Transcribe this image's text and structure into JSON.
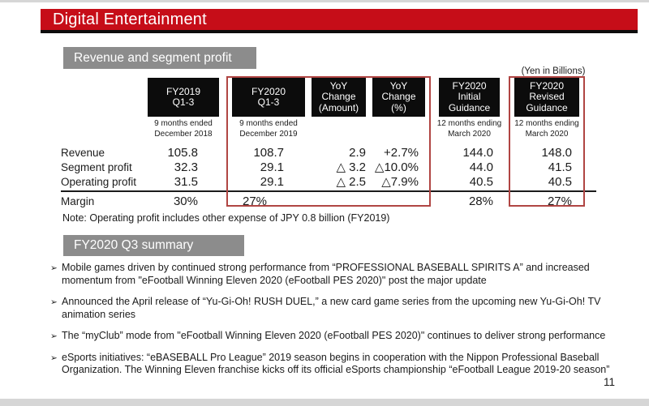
{
  "slide": {
    "title": "Digital Entertainment",
    "page_number": "11"
  },
  "colors": {
    "banner_red": "#c60d18",
    "header_gray": "#8c8c8c",
    "table_header_black": "#0c0c0c",
    "highlight_border_red": "#b04543"
  },
  "revenue_section": {
    "header": "Revenue and segment profit",
    "unit_label": "(Yen in Billions)",
    "table": {
      "columns": [
        {
          "title": "FY2019\nQ1-3",
          "subtitle": "9 months ended\nDecember 2018"
        },
        {
          "title": "FY2020\nQ1-3",
          "subtitle": "9 months ended\nDecember 2019"
        },
        {
          "title": "YoY\nChange\n(Amount)",
          "subtitle": ""
        },
        {
          "title": "YoY\nChange\n(%)",
          "subtitle": ""
        },
        {
          "title": "FY2020\nInitial\nGuidance",
          "subtitle": "12 months ending\nMarch 2020"
        },
        {
          "title": "FY2020\nRevised\nGuidance",
          "subtitle": "12 months ending\nMarch 2020"
        }
      ],
      "rows": [
        {
          "label": "Revenue",
          "values": [
            "105.8",
            "108.7",
            "2.9",
            "+2.7%",
            "144.0",
            "148.0"
          ]
        },
        {
          "label": "Segment profit",
          "values": [
            "32.3",
            "29.1",
            "△ 3.2",
            "△10.0%",
            "44.0",
            "41.5"
          ]
        },
        {
          "label": "Operating profit",
          "values": [
            "31.5",
            "29.1",
            "△ 2.5",
            "△7.9%",
            "40.5",
            "40.5"
          ]
        }
      ],
      "margin_row": {
        "label": "Margin",
        "values": [
          "30%",
          "27%",
          "",
          "",
          "28%",
          "27%"
        ]
      }
    },
    "note": "Note: Operating profit includes other expense of JPY 0.8 billion (FY2019)"
  },
  "summary_section": {
    "header": "FY2020 Q3 summary",
    "bullet_marker": "➢",
    "bullets": [
      "Mobile games driven by continued strong performance from “PROFESSIONAL BASEBALL SPIRITS A” and increased momentum from \"eFootball Winning Eleven 2020 (eFootball PES 2020)\" post the major update",
      "Announced the April release of “Yu-Gi-Oh! RUSH DUEL,” a new card game series from the upcoming new Yu-Gi-Oh! TV animation series",
      "The “myClub” mode from \"eFootball Winning Eleven 2020 (eFootball PES 2020)\" continues to deliver strong performance",
      "eSports initiatives: “eBASEBALL Pro League” 2019 season begins in cooperation with the Nippon Professional Baseball Organization. The Winning Eleven franchise kicks off its official eSports championship “eFootball League 2019-20 season”"
    ]
  }
}
